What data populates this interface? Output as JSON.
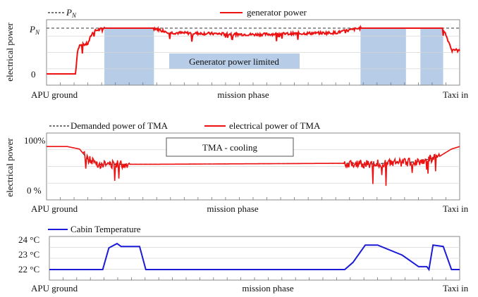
{
  "chart_data": [
    {
      "type": "line",
      "legend": [
        {
          "name": "P_N",
          "style": "dashed",
          "color": "#222222"
        },
        {
          "name": "generator power",
          "style": "solid",
          "color": "#ee1111"
        }
      ],
      "ylabel": "electrical power",
      "yticks": [
        "P_N",
        "0"
      ],
      "xlabel": "mission phase",
      "x_start_label": "APU ground",
      "x_end_label": "Taxi in",
      "annotation": "Generator power limited",
      "shaded_intervals": [
        [
          0.14,
          0.26
        ],
        [
          0.76,
          0.87
        ],
        [
          0.905,
          0.96
        ]
      ],
      "reference_level": 1.0,
      "series": [
        {
          "name": "generator power",
          "color": "#ee1111",
          "x": [
            0.0,
            0.07,
            0.075,
            0.08,
            0.1,
            0.11,
            0.12,
            0.14,
            0.26,
            0.3,
            0.5,
            0.7,
            0.76,
            0.87,
            0.905,
            0.96,
            0.98,
            1.0
          ],
          "y": [
            0.0,
            0.0,
            0.5,
            0.62,
            0.66,
            0.88,
            0.95,
            1.0,
            1.0,
            0.9,
            0.86,
            0.9,
            1.0,
            1.0,
            1.0,
            1.0,
            0.55,
            0.5
          ]
        }
      ]
    },
    {
      "type": "line",
      "legend": [
        {
          "name": "Demanded power of TMA",
          "style": "dashed",
          "color": "#222222"
        },
        {
          "name": "electrical power of TMA",
          "style": "solid",
          "color": "#ee1111"
        }
      ],
      "ylabel": "electrical power",
      "yticks": [
        "100%",
        "0 %"
      ],
      "xlabel": "mission phase",
      "x_start_label": "APU ground",
      "x_end_label": "Taxi in",
      "annotation": "TMA - cooling",
      "ylim": [
        0,
        100
      ],
      "series": [
        {
          "name": "Demanded power of TMA",
          "color": "#222222",
          "x": [
            0.0,
            0.05,
            0.08,
            0.1,
            0.13,
            0.26,
            0.5,
            0.75,
            0.77,
            0.9,
            0.95,
            0.98,
            1.0
          ],
          "y": [
            90,
            90,
            85,
            65,
            55,
            55,
            56,
            57,
            55,
            60,
            70,
            85,
            90
          ]
        },
        {
          "name": "electrical power of TMA",
          "color": "#ee1111",
          "x": [
            0.0,
            0.05,
            0.08,
            0.1,
            0.13,
            0.26,
            0.5,
            0.75,
            0.77,
            0.9,
            0.95,
            0.98,
            1.0
          ],
          "y": [
            90,
            90,
            85,
            65,
            55,
            55,
            56,
            57,
            55,
            60,
            70,
            85,
            90
          ]
        }
      ]
    },
    {
      "type": "line",
      "legend": [
        {
          "name": "Cabin Temperature",
          "style": "solid",
          "color": "#1b1bd8"
        }
      ],
      "yticks": [
        "24 °C",
        "23 °C",
        "22 °C"
      ],
      "ylim": [
        22,
        24
      ],
      "xlabel": "mission phase",
      "x_start_label": "APU ground",
      "x_end_label": "Taxi in",
      "series": [
        {
          "name": "Cabin Temperature",
          "color": "#1b1bd8",
          "x": [
            0.0,
            0.13,
            0.145,
            0.165,
            0.175,
            0.22,
            0.235,
            0.5,
            0.72,
            0.74,
            0.77,
            0.8,
            0.86,
            0.9,
            0.92,
            0.925,
            0.935,
            0.96,
            0.98,
            1.0
          ],
          "y": [
            22,
            22,
            23.5,
            23.8,
            23.6,
            23.6,
            22,
            22,
            22,
            22.5,
            23.7,
            23.7,
            23.0,
            22.2,
            22.2,
            22.0,
            23.7,
            23.6,
            22.0,
            22.0
          ]
        }
      ]
    }
  ]
}
